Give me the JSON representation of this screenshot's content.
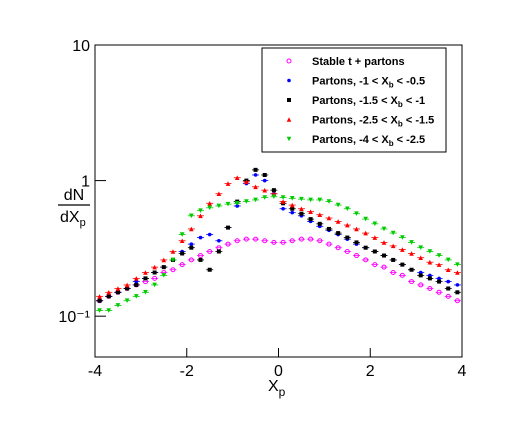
{
  "chart_data": {
    "type": "scatter",
    "xlabel": {
      "main": "X",
      "sub": "p"
    },
    "ylabel": {
      "numerator": "dN",
      "denominator": "dX",
      "denominator_sub": "p"
    },
    "x": [
      -3.9,
      -3.7,
      -3.5,
      -3.3,
      -3.1,
      -2.9,
      -2.7,
      -2.5,
      -2.3,
      -2.1,
      -1.9,
      -1.7,
      -1.5,
      -1.3,
      -1.1,
      -0.9,
      -0.7,
      -0.5,
      -0.3,
      -0.1,
      0.1,
      0.3,
      0.5,
      0.7,
      0.9,
      1.1,
      1.3,
      1.5,
      1.7,
      1.9,
      2.1,
      2.3,
      2.5,
      2.7,
      2.9,
      3.1,
      3.3,
      3.5,
      3.7,
      3.9
    ],
    "series": [
      {
        "name": "Stable t + partons",
        "color": "#ff00ff",
        "marker": "circle-open",
        "values": [
          0.13,
          0.14,
          0.15,
          0.16,
          0.17,
          0.18,
          0.19,
          0.21,
          0.22,
          0.24,
          0.26,
          0.28,
          0.3,
          0.32,
          0.34,
          0.36,
          0.37,
          0.37,
          0.36,
          0.35,
          0.35,
          0.36,
          0.37,
          0.37,
          0.36,
          0.34,
          0.32,
          0.3,
          0.28,
          0.26,
          0.24,
          0.23,
          0.21,
          0.2,
          0.18,
          0.17,
          0.16,
          0.15,
          0.14,
          0.13
        ]
      },
      {
        "name": "Partons, -1 < X_b < -0.5",
        "color": "#0000ff",
        "marker": "circle",
        "values": [
          0.13,
          0.14,
          0.15,
          0.16,
          0.18,
          0.19,
          0.21,
          0.23,
          0.26,
          0.3,
          0.34,
          0.38,
          0.4,
          0.36,
          0.45,
          0.65,
          0.95,
          1.1,
          1.0,
          0.8,
          0.62,
          0.58,
          0.55,
          0.5,
          0.46,
          0.43,
          0.4,
          0.37,
          0.34,
          0.32,
          0.3,
          0.28,
          0.26,
          0.24,
          0.22,
          0.21,
          0.2,
          0.19,
          0.18,
          0.17
        ]
      },
      {
        "name": "Partons, -1.5 < X_b < -1",
        "color": "#000000",
        "marker": "square",
        "values": [
          0.13,
          0.14,
          0.15,
          0.16,
          0.17,
          0.19,
          0.21,
          0.23,
          0.26,
          0.29,
          0.32,
          0.26,
          0.22,
          0.3,
          0.45,
          0.7,
          1.0,
          1.2,
          1.1,
          0.85,
          0.68,
          0.62,
          0.57,
          0.52,
          0.48,
          0.44,
          0.41,
          0.38,
          0.35,
          0.32,
          0.3,
          0.28,
          0.26,
          0.24,
          0.22,
          0.2,
          0.19,
          0.18,
          0.16,
          0.15
        ]
      },
      {
        "name": "Partons, -2.5 < X_b < -1.5",
        "color": "#ff0000",
        "marker": "triangle",
        "values": [
          0.14,
          0.15,
          0.16,
          0.17,
          0.19,
          0.21,
          0.23,
          0.26,
          0.3,
          0.36,
          0.44,
          0.55,
          0.68,
          0.8,
          0.95,
          1.05,
          0.98,
          0.9,
          0.85,
          0.8,
          0.7,
          0.66,
          0.62,
          0.59,
          0.56,
          0.53,
          0.5,
          0.47,
          0.44,
          0.41,
          0.38,
          0.35,
          0.33,
          0.31,
          0.29,
          0.27,
          0.25,
          0.24,
          0.22,
          0.21
        ]
      },
      {
        "name": "Partons, -4 < X_b < -2.5",
        "color": "#00cc00",
        "marker": "triangle-down",
        "values": [
          0.11,
          0.11,
          0.12,
          0.13,
          0.14,
          0.15,
          0.17,
          0.2,
          0.26,
          0.4,
          0.55,
          0.6,
          0.63,
          0.65,
          0.67,
          0.68,
          0.7,
          0.72,
          0.75,
          0.76,
          0.75,
          0.74,
          0.73,
          0.72,
          0.72,
          0.7,
          0.66,
          0.62,
          0.57,
          0.52,
          0.48,
          0.44,
          0.41,
          0.38,
          0.35,
          0.32,
          0.3,
          0.28,
          0.26,
          0.24
        ]
      }
    ],
    "xlim": [
      -4,
      4
    ],
    "xticks": [
      -4,
      -2,
      0,
      2,
      4
    ],
    "ylim": [
      0.05,
      10
    ],
    "ylog": true,
    "yticks": [
      {
        "value": 0.1,
        "label": "10⁻¹"
      },
      1,
      10
    ],
    "legend": "upper-right"
  }
}
